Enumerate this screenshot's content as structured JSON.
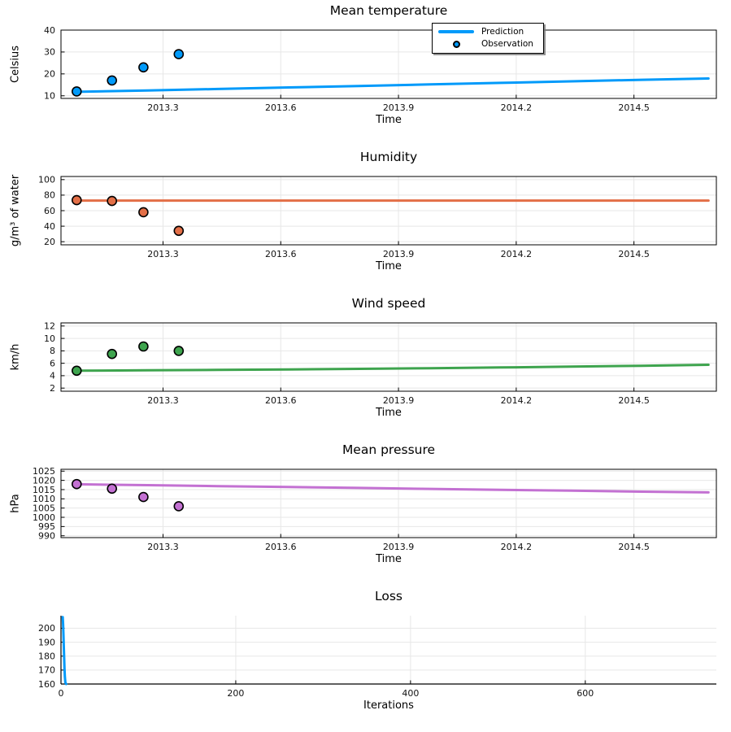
{
  "figure": {
    "background": "#ffffff"
  },
  "colors": {
    "blue": "#009AFA",
    "orange": "#E36F47",
    "green": "#3EA44E",
    "purple": "#C371D2",
    "grid": "#E7E7E7",
    "frame": "#000000",
    "tick_text": "#111111"
  },
  "legend": {
    "items": [
      {
        "label": "Prediction",
        "swatch": "line"
      },
      {
        "label": "Observation",
        "swatch": "marker"
      }
    ],
    "color": "#009AFA"
  },
  "chart_data": [
    {
      "id": "mean-temperature",
      "type": "line+scatter",
      "title": "Mean temperature",
      "xlabel": "Time",
      "ylabel": "Celsius",
      "frame": "box",
      "grid": true,
      "color": "#009AFA",
      "xlim": [
        2013.04,
        2014.71
      ],
      "ylim": [
        8.8,
        40
      ],
      "xticks": [
        2013.3,
        2013.6,
        2013.9,
        2014.2,
        2014.5
      ],
      "xtick_labels": [
        "2013.3",
        "2013.6",
        "2013.9",
        "2014.2",
        "2014.5"
      ],
      "yticks": [
        10,
        20,
        30,
        40
      ],
      "ytick_labels": [
        "10",
        "20",
        "30",
        "40"
      ],
      "line": {
        "name": "Prediction",
        "x": [
          2013.08,
          2013.26,
          2013.44,
          2013.62,
          2013.8,
          2013.98,
          2014.16,
          2014.34,
          2014.52,
          2014.69
        ],
        "y": [
          11.8,
          12.4,
          13.1,
          13.8,
          14.5,
          15.2,
          15.9,
          16.6,
          17.3,
          17.9
        ]
      },
      "scatter": {
        "name": "Observation",
        "points": [
          [
            2013.08,
            12.0
          ],
          [
            2013.17,
            17.0
          ],
          [
            2013.25,
            23.0
          ],
          [
            2013.34,
            29.0
          ]
        ]
      }
    },
    {
      "id": "humidity",
      "type": "line+scatter",
      "title": "Humidity",
      "xlabel": "Time",
      "ylabel": "g/m³ of water",
      "frame": "box",
      "grid": true,
      "color": "#E36F47",
      "xlim": [
        2013.04,
        2014.71
      ],
      "ylim": [
        16,
        104
      ],
      "xticks": [
        2013.3,
        2013.6,
        2013.9,
        2014.2,
        2014.5
      ],
      "xtick_labels": [
        "2013.3",
        "2013.6",
        "2013.9",
        "2014.2",
        "2014.5"
      ],
      "yticks": [
        20,
        40,
        60,
        80,
        100
      ],
      "ytick_labels": [
        "20",
        "40",
        "60",
        "80",
        "100"
      ],
      "line": {
        "name": "Prediction",
        "x": [
          2013.08,
          2013.26,
          2013.44,
          2013.62,
          2013.8,
          2013.98,
          2014.16,
          2014.34,
          2014.52,
          2014.69
        ],
        "y": [
          73,
          73,
          73,
          73,
          73,
          73,
          73,
          73,
          73,
          73
        ]
      },
      "scatter": {
        "name": "Observation",
        "points": [
          [
            2013.08,
            73.5
          ],
          [
            2013.17,
            72.5
          ],
          [
            2013.25,
            58.0
          ],
          [
            2013.34,
            34.0
          ]
        ]
      }
    },
    {
      "id": "wind-speed",
      "type": "line+scatter",
      "title": "Wind speed",
      "xlabel": "Time",
      "ylabel": "km/h",
      "frame": "box",
      "grid": true,
      "color": "#3EA44E",
      "xlim": [
        2013.04,
        2014.71
      ],
      "ylim": [
        1.5,
        12.5
      ],
      "xticks": [
        2013.3,
        2013.6,
        2013.9,
        2014.2,
        2014.5
      ],
      "xtick_labels": [
        "2013.3",
        "2013.6",
        "2013.9",
        "2014.2",
        "2014.5"
      ],
      "yticks": [
        2,
        4,
        6,
        8,
        10,
        12
      ],
      "ytick_labels": [
        "2",
        "4",
        "6",
        "8",
        "10",
        "12"
      ],
      "line": {
        "name": "Prediction",
        "x": [
          2013.08,
          2013.26,
          2013.44,
          2013.62,
          2013.8,
          2013.98,
          2014.16,
          2014.34,
          2014.52,
          2014.69
        ],
        "y": [
          4.8,
          4.86,
          4.93,
          5.0,
          5.1,
          5.2,
          5.32,
          5.45,
          5.6,
          5.75
        ]
      },
      "scatter": {
        "name": "Observation",
        "points": [
          [
            2013.08,
            4.8
          ],
          [
            2013.17,
            7.5
          ],
          [
            2013.25,
            8.7
          ],
          [
            2013.34,
            8.0
          ]
        ]
      }
    },
    {
      "id": "mean-pressure",
      "type": "line+scatter",
      "title": "Mean pressure",
      "xlabel": "Time",
      "ylabel": "hPa",
      "frame": "box",
      "grid": true,
      "color": "#C371D2",
      "xlim": [
        2013.04,
        2014.71
      ],
      "ylim": [
        989,
        1026
      ],
      "xticks": [
        2013.3,
        2013.6,
        2013.9,
        2014.2,
        2014.5
      ],
      "xtick_labels": [
        "2013.3",
        "2013.6",
        "2013.9",
        "2014.2",
        "2014.5"
      ],
      "yticks": [
        990,
        995,
        1000,
        1005,
        1010,
        1015,
        1020,
        1025
      ],
      "ytick_labels": [
        "990",
        "995",
        "1000",
        "1005",
        "1010",
        "1015",
        "1020",
        "1025"
      ],
      "line": {
        "name": "Prediction",
        "x": [
          2013.08,
          2013.26,
          2013.44,
          2013.62,
          2013.8,
          2013.98,
          2014.16,
          2014.34,
          2014.52,
          2014.69
        ],
        "y": [
          1017.9,
          1017.4,
          1016.9,
          1016.4,
          1015.9,
          1015.4,
          1014.9,
          1014.4,
          1013.9,
          1013.5
        ]
      },
      "scatter": {
        "name": "Observation",
        "points": [
          [
            2013.08,
            1018.0
          ],
          [
            2013.17,
            1015.5
          ],
          [
            2013.25,
            1011.0
          ],
          [
            2013.34,
            1006.0
          ]
        ]
      }
    },
    {
      "id": "loss",
      "type": "line",
      "title": "Loss",
      "xlabel": "Iterations",
      "ylabel": "",
      "frame": "axes",
      "grid": true,
      "color": "#009AFA",
      "xlim": [
        0,
        750
      ],
      "ylim": [
        160,
        209
      ],
      "xticks": [
        0,
        200,
        400,
        600
      ],
      "xtick_labels": [
        "0",
        "200",
        "400",
        "600"
      ],
      "yticks": [
        160,
        170,
        180,
        190,
        200
      ],
      "ytick_labels": [
        "160",
        "170",
        "180",
        "190",
        "200"
      ],
      "line": {
        "name": "Loss",
        "x": [
          2,
          2.4,
          2.8,
          3.2,
          3.6,
          4.0,
          4.5,
          5.0,
          6.0
        ],
        "y": [
          208,
          203,
          196,
          188,
          179,
          171,
          165,
          161,
          160
        ]
      },
      "scatter": null
    }
  ]
}
